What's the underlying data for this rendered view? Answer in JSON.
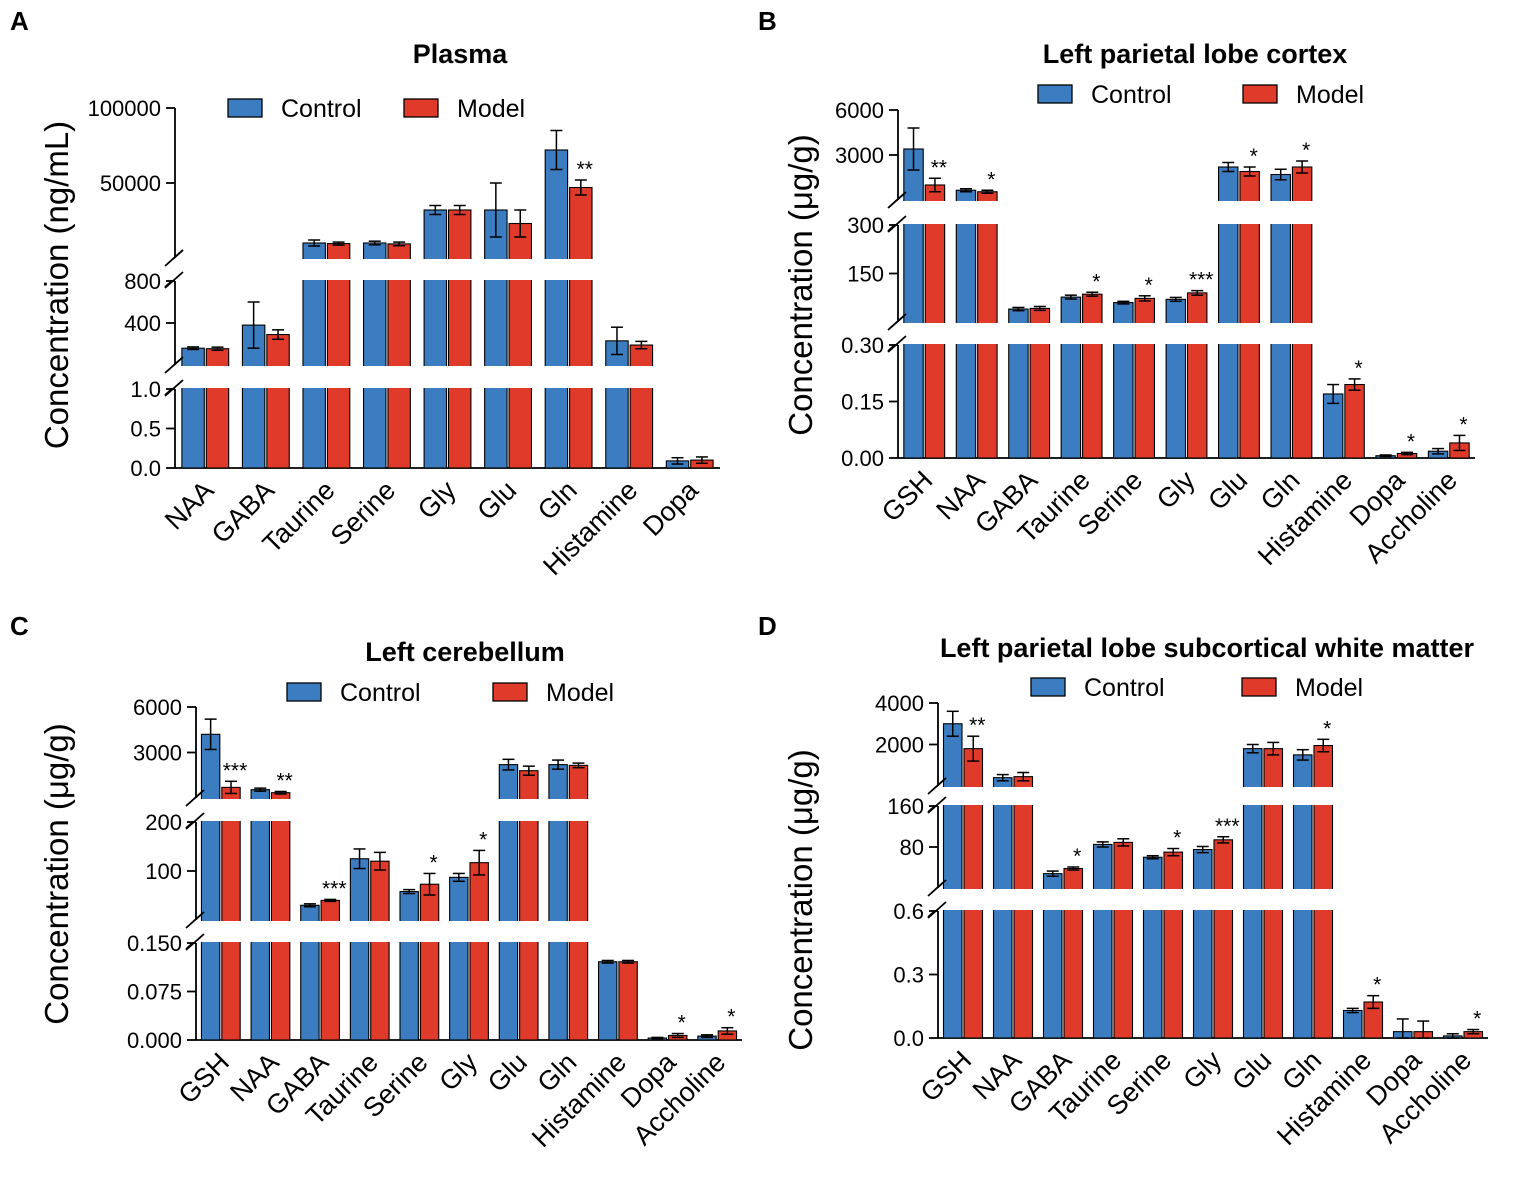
{
  "colors": {
    "control": "#3B7DC0",
    "model": "#E03A2B",
    "axis": "#000000",
    "background": "#ffffff"
  },
  "chart_data": [
    {
      "type": "bar",
      "panel": "A",
      "title": "Plasma",
      "ylabel": "Concentration (ng/mL)",
      "legend": [
        "Control",
        "Model"
      ],
      "categories": [
        "NAA",
        "GABA",
        "Taurine",
        "Serine",
        "Gly",
        "Glu",
        "Gln",
        "Histamine",
        "Dopa"
      ],
      "segments": [
        {
          "min": 0,
          "max": 1.0,
          "ticks": [
            "0.0",
            "0.5",
            "1.0"
          ]
        },
        {
          "min": 0,
          "max": 800,
          "ticks": [
            "400",
            "800"
          ]
        },
        {
          "min": 0,
          "max": 100000,
          "ticks": [
            "50000",
            "100000"
          ]
        }
      ],
      "series": [
        {
          "name": "Control",
          "values": [
            160,
            380,
            10000,
            10000,
            32000,
            32000,
            72000,
            230,
            0.09
          ],
          "errors": [
            12,
            220,
            2000,
            1200,
            3000,
            18000,
            13000,
            130,
            0.04
          ]
        },
        {
          "name": "Model",
          "values": [
            155,
            290,
            9600,
            9400,
            32000,
            23000,
            47000,
            190,
            0.1
          ],
          "errors": [
            15,
            45,
            1000,
            1200,
            3000,
            9000,
            5000,
            35,
            0.04
          ]
        }
      ],
      "significance": [
        "",
        "",
        "",
        "",
        "",
        "",
        "**",
        "",
        ""
      ]
    },
    {
      "type": "bar",
      "panel": "B",
      "title": "Left parietal lobe cortex",
      "ylabel": "Concentration (μg/g)",
      "legend": [
        "Control",
        "Model"
      ],
      "categories": [
        "GSH",
        "NAA",
        "GABA",
        "Taurine",
        "Serine",
        "Gly",
        "Glu",
        "Gln",
        "Histamine",
        "Dopa",
        "Accholine"
      ],
      "segments": [
        {
          "min": 0,
          "max": 0.3,
          "ticks": [
            "0.00",
            "0.15",
            "0.30"
          ]
        },
        {
          "min": 0,
          "max": 300,
          "ticks": [
            "150",
            "300"
          ]
        },
        {
          "min": 0,
          "max": 6000,
          "ticks": [
            "3000",
            "6000"
          ]
        }
      ],
      "series": [
        {
          "name": "Control",
          "values": [
            3400,
            650,
            40,
            77,
            60,
            70,
            2200,
            1700,
            0.17,
            0.006,
            0.018
          ],
          "errors": [
            1400,
            100,
            5,
            6,
            4,
            6,
            300,
            350,
            0.025,
            0.002,
            0.007
          ]
        },
        {
          "name": "Model",
          "values": [
            1000,
            550,
            42,
            86,
            73,
            90,
            1900,
            2200,
            0.195,
            0.012,
            0.04
          ],
          "errors": [
            450,
            100,
            6,
            6,
            8,
            7,
            300,
            400,
            0.015,
            0.003,
            0.02
          ]
        }
      ],
      "significance": [
        "**",
        "*",
        "",
        "*",
        "*",
        "***",
        "*",
        "*",
        "*",
        "*",
        "*"
      ]
    },
    {
      "type": "bar",
      "panel": "C",
      "title": "Left cerebellum",
      "ylabel": "Concentration (μg/g)",
      "legend": [
        "Control",
        "Model"
      ],
      "categories": [
        "GSH",
        "NAA",
        "GABA",
        "Taurine",
        "Serine",
        "Gly",
        "Glu",
        "Gln",
        "Histamine",
        "Dopa",
        "Accholine"
      ],
      "segments": [
        {
          "min": 0,
          "max": 0.15,
          "ticks": [
            "0.000",
            "0.075",
            "0.150"
          ]
        },
        {
          "min": 0,
          "max": 200,
          "ticks": [
            "100",
            "200"
          ]
        },
        {
          "min": 0,
          "max": 6000,
          "ticks": [
            "3000",
            "6000"
          ]
        }
      ],
      "series": [
        {
          "name": "Control",
          "values": [
            4200,
            550,
            30,
            125,
            58,
            87,
            2200,
            2200,
            0.121,
            0.003,
            0.006
          ],
          "errors": [
            1000,
            100,
            3,
            20,
            4,
            8,
            350,
            300,
            0.002,
            0.001,
            0.002
          ]
        },
        {
          "name": "Model",
          "values": [
            700,
            350,
            40,
            120,
            73,
            117,
            1800,
            2150,
            0.121,
            0.007,
            0.014
          ],
          "errors": [
            400,
            80,
            2,
            18,
            22,
            25,
            300,
            150,
            0.002,
            0.003,
            0.005
          ]
        }
      ],
      "significance": [
        "***",
        "**",
        "***",
        "",
        "*",
        "*",
        "",
        "",
        "",
        "*",
        "*"
      ]
    },
    {
      "type": "bar",
      "panel": "D",
      "title": "Left parietal lobe subcortical white matter",
      "ylabel": "Concentration (μg/g)",
      "legend": [
        "Control",
        "Model"
      ],
      "categories": [
        "GSH",
        "NAA",
        "GABA",
        "Taurine",
        "Serine",
        "Gly",
        "Glu",
        "Gln",
        "Histamine",
        "Dopa",
        "Accholine"
      ],
      "segments": [
        {
          "min": 0,
          "max": 0.6,
          "ticks": [
            "0.0",
            "0.3",
            "0.6"
          ]
        },
        {
          "min": 0,
          "max": 160,
          "ticks": [
            "80",
            "160"
          ]
        },
        {
          "min": 0,
          "max": 4000,
          "ticks": [
            "2000",
            "4000"
          ]
        }
      ],
      "series": [
        {
          "name": "Control",
          "values": [
            3000,
            400,
            28,
            85,
            60,
            75,
            1800,
            1500,
            0.13,
            0.03,
            0.01
          ],
          "errors": [
            600,
            150,
            5,
            5,
            3,
            6,
            200,
            250,
            0.01,
            0.06,
            0.01
          ]
        },
        {
          "name": "Model",
          "values": [
            1800,
            450,
            38,
            89,
            70,
            94,
            1800,
            1950,
            0.17,
            0.03,
            0.03
          ],
          "errors": [
            600,
            200,
            3,
            7,
            7,
            6,
            300,
            300,
            0.03,
            0.05,
            0.01
          ]
        }
      ],
      "significance": [
        "**",
        "",
        "*",
        "",
        "*",
        "***",
        "",
        "*",
        "*",
        "",
        "*"
      ]
    }
  ]
}
